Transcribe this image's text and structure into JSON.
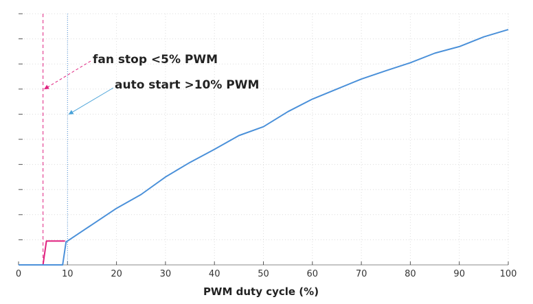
{
  "chart_data": {
    "type": "line",
    "title": "",
    "xlabel": "PWM duty cycle (%)",
    "ylabel": "",
    "xlim": [
      0,
      100
    ],
    "ylim": [
      0,
      100
    ],
    "x_ticks": [
      0,
      10,
      20,
      30,
      40,
      50,
      60,
      70,
      80,
      90,
      100
    ],
    "y_tick_count": 10,
    "y_tick_labels_shown": false,
    "grid": true,
    "series": [
      {
        "color": "#e0207f",
        "x": [
          0,
          5,
          5.7,
          9.5
        ],
        "y": [
          0,
          0,
          9.5,
          9.5
        ]
      },
      {
        "color": "#4a90d9",
        "x": [
          0,
          9,
          9.7,
          10,
          15,
          20,
          25,
          30,
          35,
          40,
          45,
          50,
          55,
          60,
          65,
          70,
          75,
          80,
          85,
          90,
          95,
          100
        ],
        "y": [
          0,
          0,
          9.2,
          9.5,
          16,
          22.5,
          28,
          35,
          40.8,
          46,
          51.5,
          55,
          61,
          66,
          70,
          74,
          77.3,
          80.5,
          84.3,
          86.9,
          90.8,
          93.7
        ]
      }
    ],
    "reference_lines": [
      {
        "x": 5,
        "color": "#e0207f",
        "style": "dashed"
      },
      {
        "x": 10,
        "color": "#4a90d9",
        "style": "dotted"
      }
    ],
    "annotations": [
      {
        "text": "fan stop <5% PWM",
        "color": "#e0207f",
        "arrow_to": {
          "x": 5,
          "y": 70
        }
      },
      {
        "text": "auto start >10% PWM",
        "color": "#4aa3d9",
        "arrow_to": {
          "x": 10,
          "y": 60
        }
      }
    ]
  }
}
